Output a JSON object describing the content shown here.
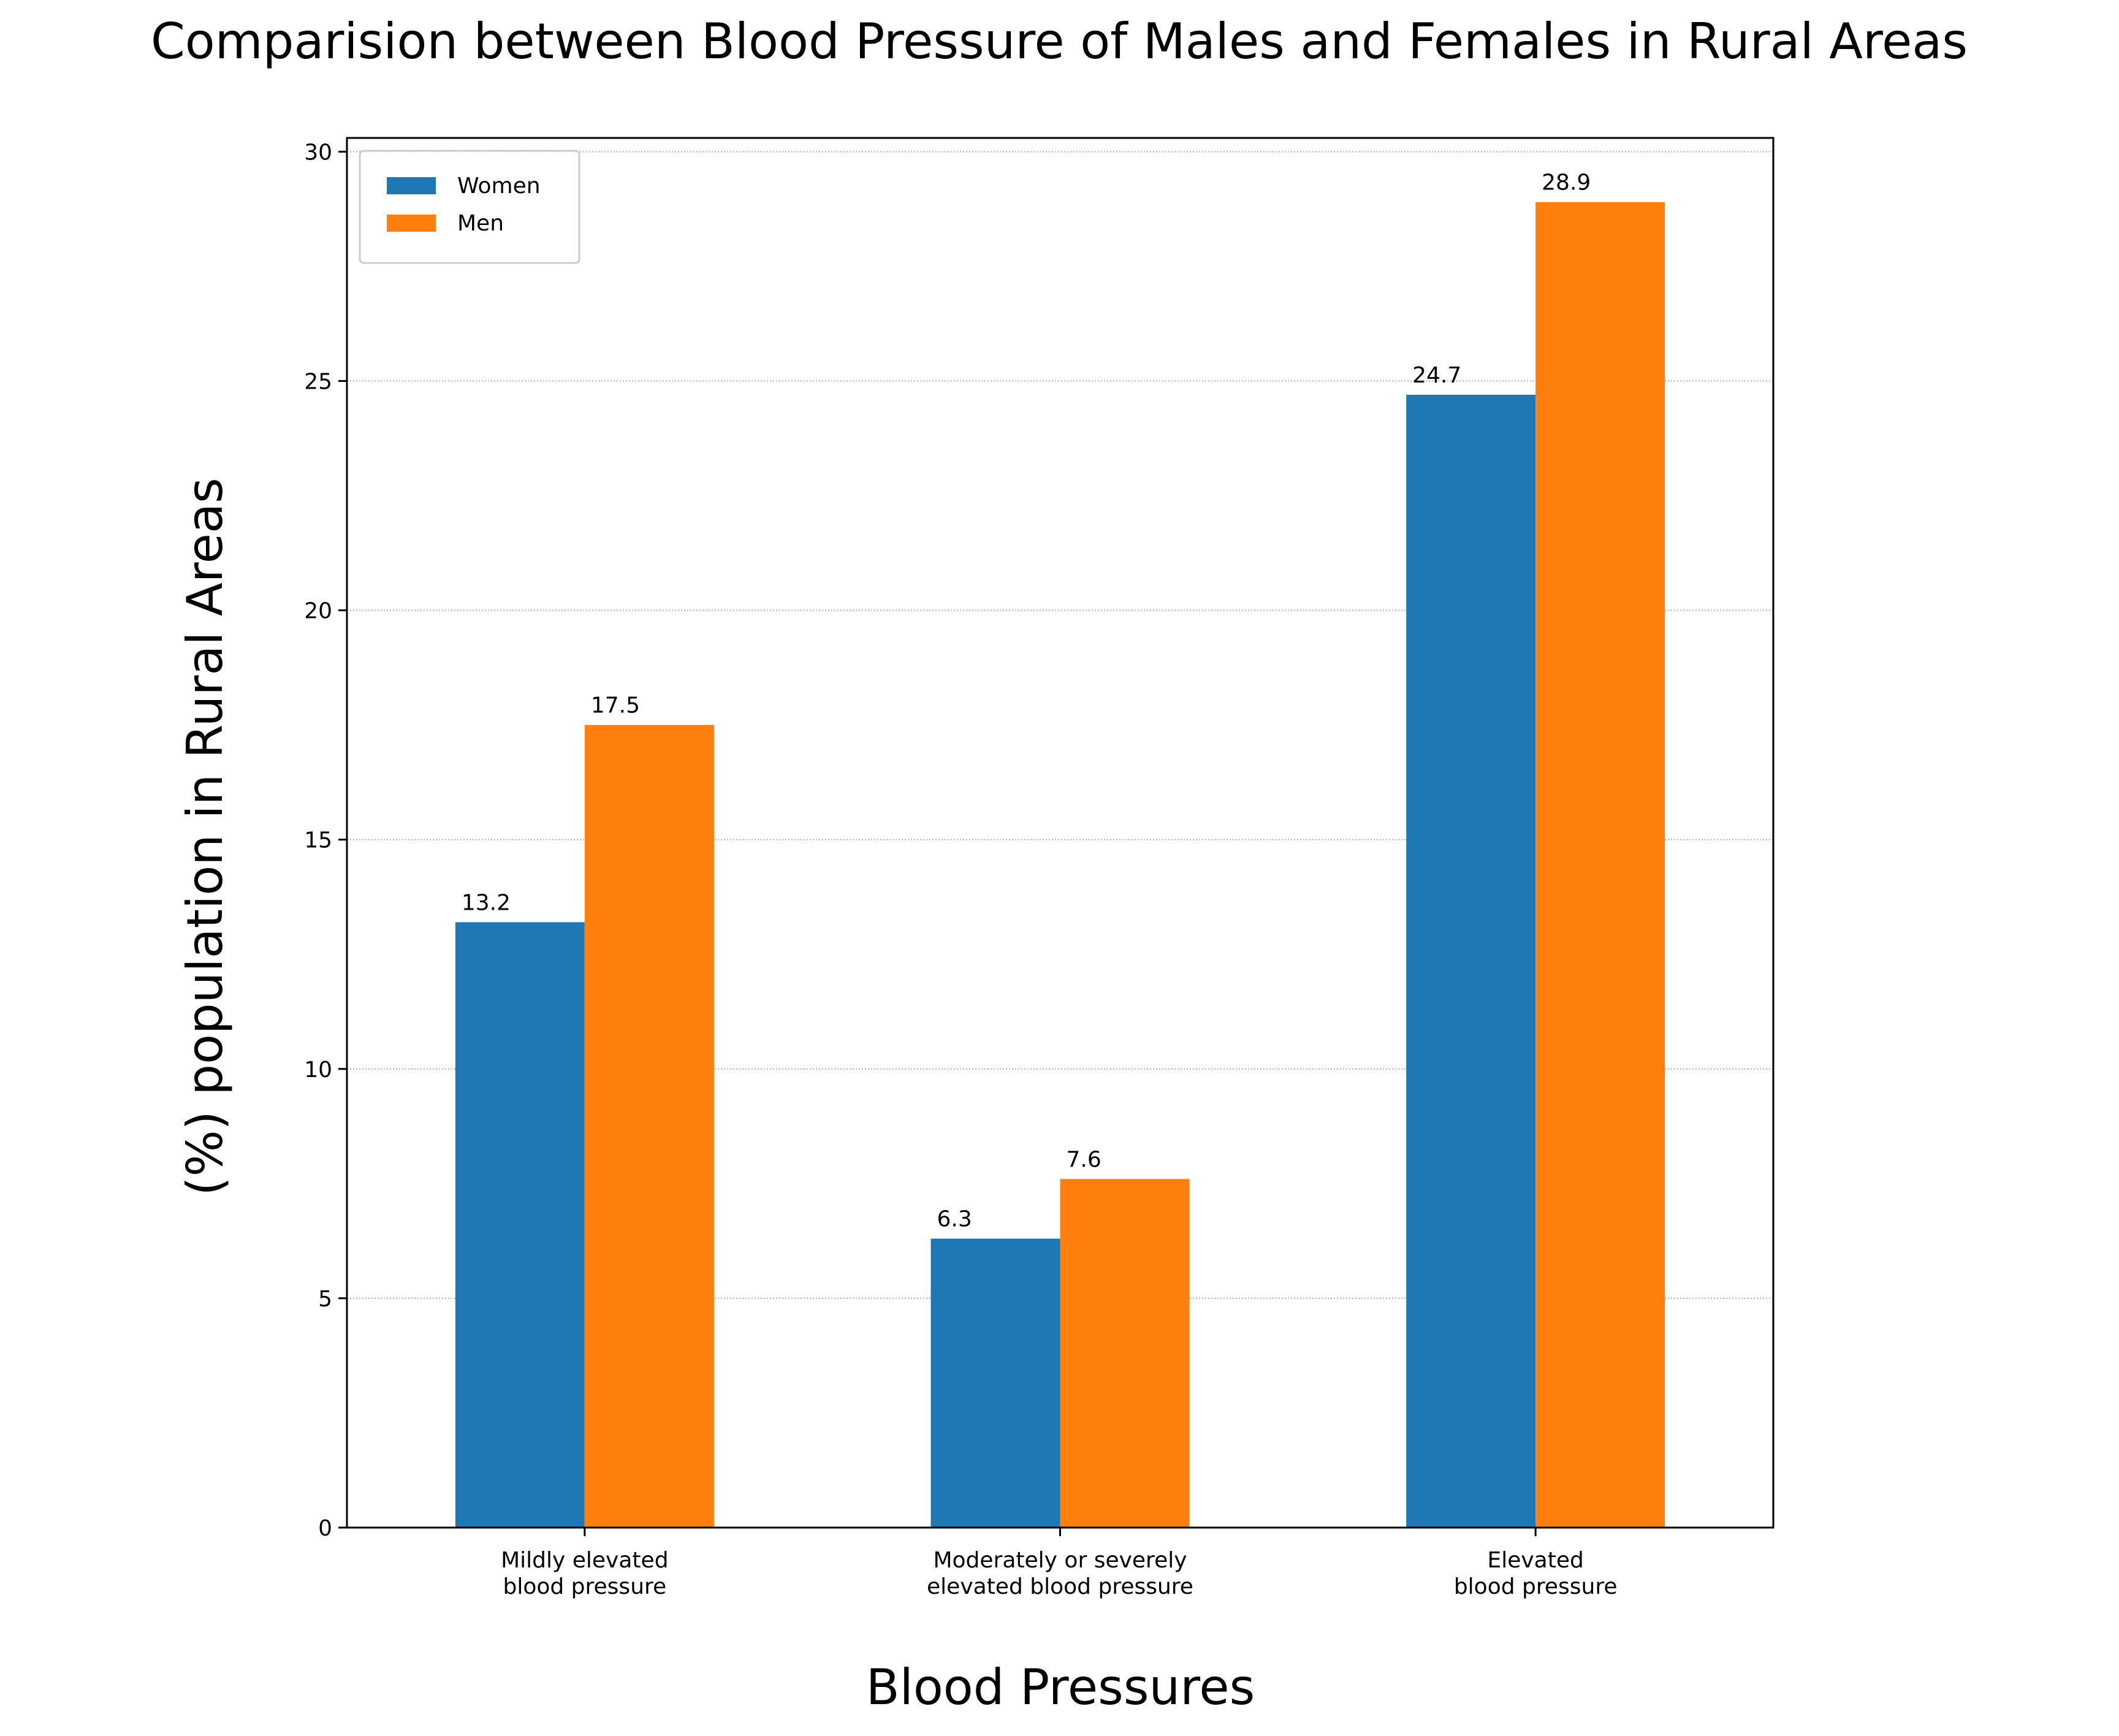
{
  "chart_data": {
    "type": "bar",
    "title": "Comparision between Blood Pressure of Males and Females in Rural Areas",
    "xlabel": "Blood Pressures",
    "ylabel": "(%) population in Rural Areas",
    "categories": [
      [
        "Mildly elevated",
        "blood pressure"
      ],
      [
        "Moderately or severely",
        "elevated blood pressure"
      ],
      [
        "Elevated",
        "blood pressure"
      ]
    ],
    "series": [
      {
        "name": "Women",
        "color": "#1f77b4",
        "values": [
          13.2,
          6.3,
          24.7
        ]
      },
      {
        "name": "Men",
        "color": "#ff7f0e",
        "values": [
          17.5,
          7.6,
          28.9
        ]
      }
    ],
    "ylim": [
      0,
      30.3
    ],
    "yticks": [
      0,
      5,
      10,
      15,
      20,
      25,
      30
    ],
    "grid": "y-dotted",
    "legend": "top-left"
  }
}
